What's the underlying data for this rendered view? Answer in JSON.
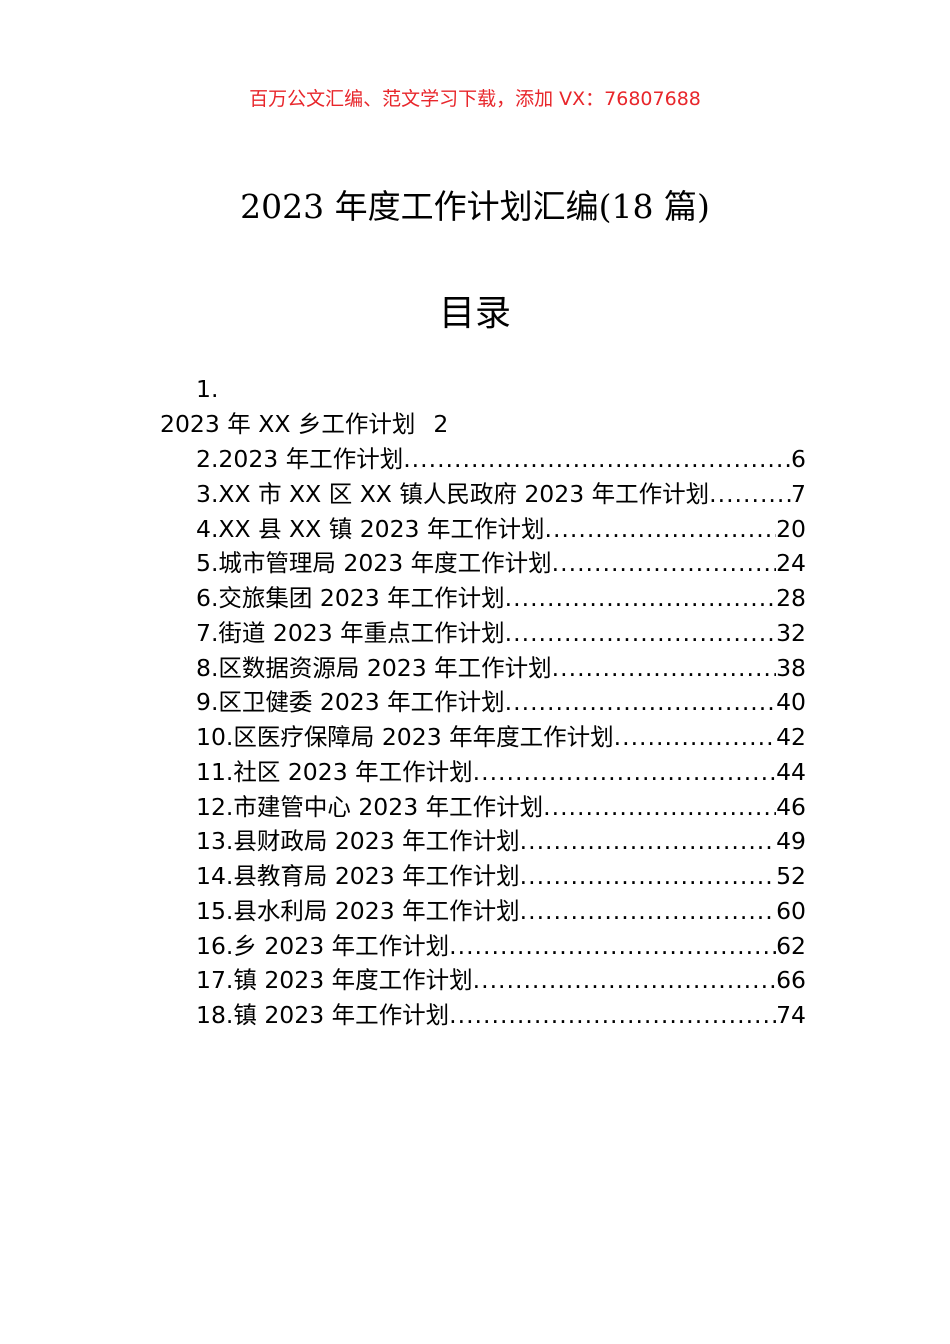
{
  "banner": "百万公文汇编、范文学习下载，添加 VX：76807688",
  "banner_color": "#e8262b",
  "title": "2023 年度工作计划汇编(18 篇)",
  "toc_heading": "目录",
  "toc_first": {
    "number": "1.",
    "text": "2023 年 XX 乡工作计划",
    "page": "2"
  },
  "toc": [
    {
      "text": "2.2023 年工作计划",
      "page": "6"
    },
    {
      "text": "3.XX 市 XX 区 XX 镇人民政府 2023 年工作计划",
      "page": "7"
    },
    {
      "text": "4.XX 县 XX 镇 2023 年工作计划",
      "page": "20"
    },
    {
      "text": "5.城市管理局 2023 年度工作计划",
      "page": "24"
    },
    {
      "text": "6.交旅集团 2023 年工作计划",
      "page": "28"
    },
    {
      "text": "7.街道 2023 年重点工作计划",
      "page": "32"
    },
    {
      "text": "8.区数据资源局 2023 年工作计划",
      "page": "38"
    },
    {
      "text": "9.区卫健委 2023 年工作计划",
      "page": "40"
    },
    {
      "text": "10.区医疗保障局 2023 年年度工作计划",
      "page": "42"
    },
    {
      "text": "11.社区 2023 年工作计划",
      "page": "44"
    },
    {
      "text": "12.市建管中心 2023 年工作计划",
      "page": "46"
    },
    {
      "text": "13.县财政局 2023 年工作计划",
      "page": "49"
    },
    {
      "text": "14.县教育局 2023 年工作计划",
      "page": "52"
    },
    {
      "text": "15.县水利局 2023 年工作计划",
      "page": "60"
    },
    {
      "text": "16.乡 2023 年工作计划",
      "page": "62"
    },
    {
      "text": "17.镇 2023 年度工作计划",
      "page": "66"
    },
    {
      "text": "18.镇 2023 年工作计划",
      "page": "74"
    }
  ]
}
